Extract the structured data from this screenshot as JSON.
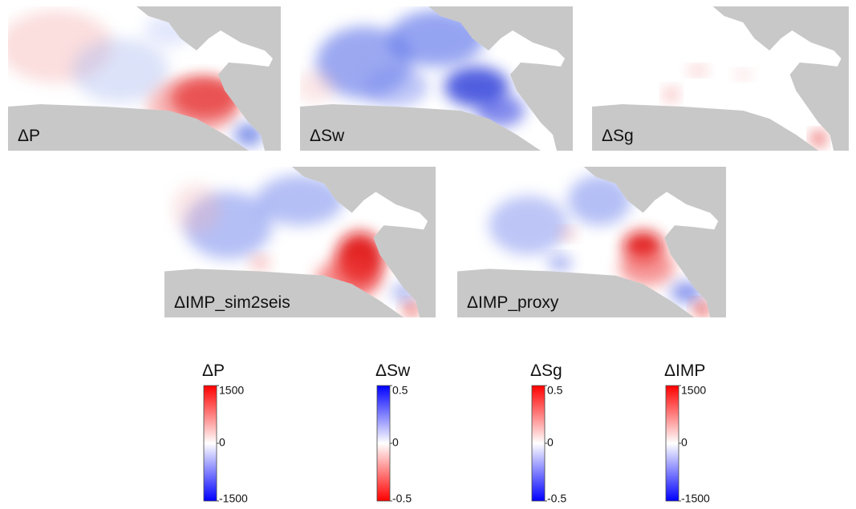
{
  "panels": [
    {
      "label": "ΔP"
    },
    {
      "label": "ΔSw"
    },
    {
      "label": "ΔSg"
    },
    {
      "label": "ΔIMP_sim2seis"
    },
    {
      "label": "ΔIMP_proxy"
    }
  ],
  "colorbars": [
    {
      "title": "ΔP",
      "lim": [
        -1500,
        1500
      ],
      "ticks": [
        1500,
        0,
        -1500
      ],
      "top_color": "#ff0000",
      "bottom_color": "#0000ff"
    },
    {
      "title": "ΔSw",
      "lim": [
        -0.5,
        0.5
      ],
      "ticks": [
        0.5,
        0,
        -0.5
      ],
      "top_color": "#0000ff",
      "bottom_color": "#ff0000"
    },
    {
      "title": "ΔSg",
      "lim": [
        -0.5,
        0.5
      ],
      "ticks": [
        0.5,
        0,
        -0.5
      ],
      "top_color": "#ff0000",
      "bottom_color": "#0000ff"
    },
    {
      "title": "ΔIMP",
      "lim": [
        -1500,
        1500
      ],
      "ticks": [
        1500,
        0,
        -1500
      ],
      "top_color": "#ff0000",
      "bottom_color": "#0000ff"
    }
  ]
}
